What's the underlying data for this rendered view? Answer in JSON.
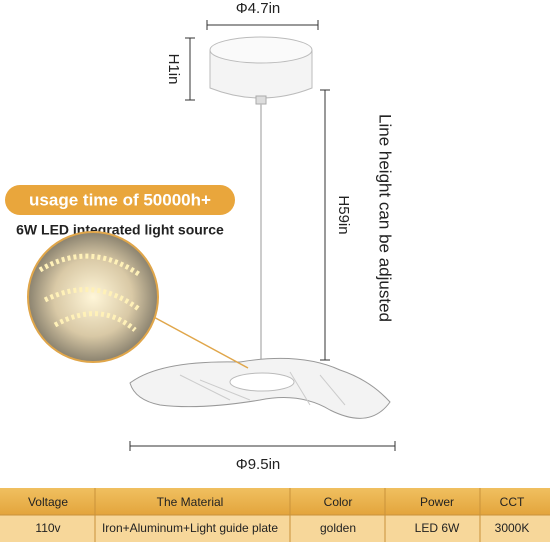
{
  "dimensions": {
    "canopy_diameter": "Φ4.7in",
    "canopy_height": "H1in",
    "line_height": "H59in",
    "line_note": "Line height can be adjusted",
    "shade_diameter": "Φ9.5in"
  },
  "callout": {
    "badge": "usage time of 50000h+",
    "caption": "6W LED integrated light source"
  },
  "table": {
    "header": [
      "Voltage",
      "The Material",
      "Color",
      "Power",
      "CCT"
    ],
    "rows": [
      [
        "110v",
        "Iron+Aluminum+Light guide plate",
        "golden",
        "LED 6W",
        "3000K"
      ]
    ]
  }
}
